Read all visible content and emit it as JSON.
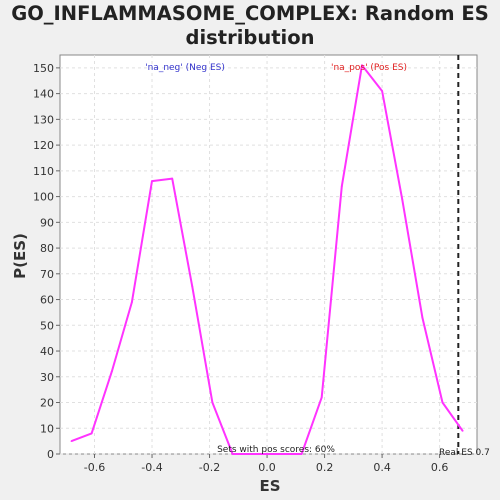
{
  "chart_data": {
    "type": "line",
    "title_line1": "GO_INFLAMMASOME_COMPLEX: Random ES",
    "title_line2": "distribution",
    "xlabel": "ES",
    "ylabel": "P(ES)",
    "xlim": [
      -0.72,
      0.73
    ],
    "ylim": [
      0,
      155
    ],
    "x_ticks": [
      -0.6,
      -0.4,
      -0.2,
      0.0,
      0.2,
      0.4,
      0.6
    ],
    "x_tick_labels": [
      "-0.6",
      "-0.4",
      "-0.2",
      "0.0",
      "0.2",
      "0.4",
      "0.6"
    ],
    "y_ticks": [
      0,
      10,
      20,
      30,
      40,
      50,
      60,
      70,
      80,
      90,
      100,
      110,
      120,
      130,
      140,
      150
    ],
    "y_tick_labels": [
      "0",
      "10",
      "20",
      "30",
      "40",
      "50",
      "60",
      "70",
      "80",
      "90",
      "100",
      "110",
      "120",
      "130",
      "140",
      "150"
    ],
    "grid": true,
    "series": [
      {
        "color": "#ff33ff",
        "x": [
          -0.68,
          -0.61,
          -0.54,
          -0.47,
          -0.4,
          -0.33,
          -0.26,
          -0.19,
          -0.12,
          -0.05,
          0.04,
          0.12,
          0.19,
          0.26,
          0.33,
          0.4,
          0.47,
          0.54,
          0.61,
          0.68
        ],
        "y": [
          5,
          8,
          32,
          59,
          106,
          107,
          65,
          20,
          0,
          0,
          0,
          0,
          22,
          104,
          151,
          141,
          99,
          53,
          20,
          9
        ]
      }
    ],
    "annotations": {
      "neg_label": "'na_neg' (Neg ES)",
      "pos_label": "'na_pos' (Pos ES)",
      "sets_text": "Sets with pos scores: 60%",
      "real_es_text": "Real ES 0.7"
    },
    "real_es_value": 0.665,
    "colors": {
      "line": "#ff33ff",
      "neg_label": "#3333cc",
      "pos_label": "#e02020",
      "grid": "#e0e0e0",
      "background": "#ffffff"
    }
  }
}
